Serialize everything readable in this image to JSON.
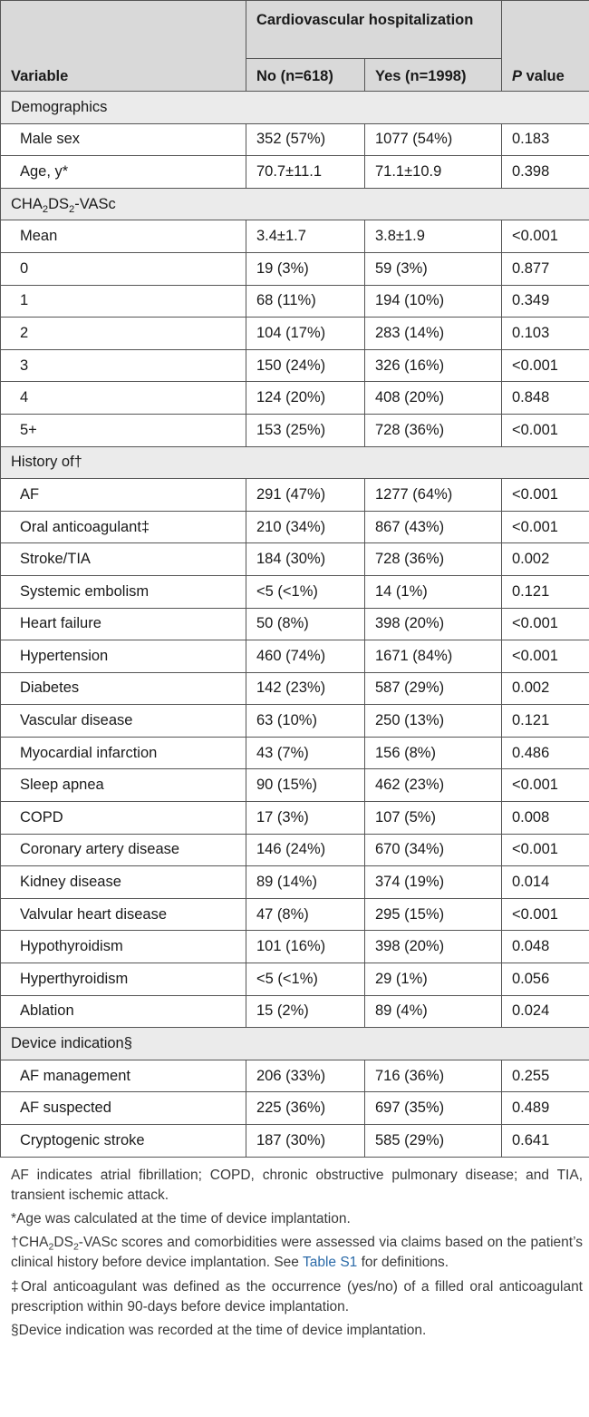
{
  "table": {
    "header": {
      "variable": "Variable",
      "group": "Cardiovascular hospitalization",
      "no": "No (n=618)",
      "yes": "Yes (n=1998)",
      "p_italic": "P",
      "p_rest": " value"
    },
    "sections": [
      {
        "title": "Demographics",
        "rows": [
          {
            "label": "Male sex",
            "no": "352 (57%)",
            "yes": "1077 (54%)",
            "p": "0.183"
          },
          {
            "label": "Age, y*",
            "no": "70.7±11.1",
            "yes": "71.1±10.9",
            "p": "0.398"
          }
        ]
      },
      {
        "title_parts": [
          "CHA",
          "2",
          "DS",
          "2",
          "-VASc"
        ],
        "rows": [
          {
            "label": "Mean",
            "no": "3.4±1.7",
            "yes": "3.8±1.9",
            "p": "<0.001"
          },
          {
            "label": "0",
            "no": "19 (3%)",
            "yes": "59 (3%)",
            "p": "0.877"
          },
          {
            "label": "1",
            "no": "68 (11%)",
            "yes": "194 (10%)",
            "p": "0.349"
          },
          {
            "label": "2",
            "no": "104 (17%)",
            "yes": "283 (14%)",
            "p": "0.103"
          },
          {
            "label": "3",
            "no": "150 (24%)",
            "yes": "326 (16%)",
            "p": "<0.001"
          },
          {
            "label": "4",
            "no": "124 (20%)",
            "yes": "408 (20%)",
            "p": "0.848"
          },
          {
            "label": "5+",
            "no": "153 (25%)",
            "yes": "728 (36%)",
            "p": "<0.001"
          }
        ]
      },
      {
        "title": "History of†",
        "rows": [
          {
            "label": "AF",
            "no": "291 (47%)",
            "yes": "1277 (64%)",
            "p": "<0.001"
          },
          {
            "label": "Oral anticoagulant‡",
            "no": "210 (34%)",
            "yes": "867 (43%)",
            "p": "<0.001"
          },
          {
            "label": "Stroke/TIA",
            "no": "184 (30%)",
            "yes": "728 (36%)",
            "p": "0.002"
          },
          {
            "label": "Systemic embolism",
            "no": "<5 (<1%)",
            "yes": "14 (1%)",
            "p": "0.121"
          },
          {
            "label": "Heart failure",
            "no": "50 (8%)",
            "yes": "398 (20%)",
            "p": "<0.001"
          },
          {
            "label": "Hypertension",
            "no": "460 (74%)",
            "yes": "1671 (84%)",
            "p": "<0.001"
          },
          {
            "label": "Diabetes",
            "no": "142 (23%)",
            "yes": "587 (29%)",
            "p": "0.002"
          },
          {
            "label": "Vascular disease",
            "no": "63 (10%)",
            "yes": "250 (13%)",
            "p": "0.121"
          },
          {
            "label": "Myocardial infarction",
            "no": "43 (7%)",
            "yes": "156 (8%)",
            "p": "0.486"
          },
          {
            "label": "Sleep apnea",
            "no": "90 (15%)",
            "yes": "462 (23%)",
            "p": "<0.001"
          },
          {
            "label": "COPD",
            "no": "17 (3%)",
            "yes": "107 (5%)",
            "p": "0.008"
          },
          {
            "label": "Coronary artery disease",
            "no": "146 (24%)",
            "yes": "670 (34%)",
            "p": "<0.001"
          },
          {
            "label": "Kidney disease",
            "no": "89 (14%)",
            "yes": "374 (19%)",
            "p": "0.014"
          },
          {
            "label": "Valvular heart disease",
            "no": "47 (8%)",
            "yes": "295 (15%)",
            "p": "<0.001"
          },
          {
            "label": "Hypothyroidism",
            "no": "101 (16%)",
            "yes": "398 (20%)",
            "p": "0.048"
          },
          {
            "label": "Hyperthyroidism",
            "no": "<5 (<1%)",
            "yes": "29 (1%)",
            "p": "0.056"
          },
          {
            "label": "Ablation",
            "no": "15 (2%)",
            "yes": "89 (4%)",
            "p": "0.024"
          }
        ]
      },
      {
        "title": "Device indication§",
        "rows": [
          {
            "label": "AF management",
            "no": "206 (33%)",
            "yes": "716 (36%)",
            "p": "0.255"
          },
          {
            "label": "AF suspected",
            "no": "225 (36%)",
            "yes": "697 (35%)",
            "p": "0.489"
          },
          {
            "label": "Cryptogenic stroke",
            "no": "187 (30%)",
            "yes": "585 (29%)",
            "p": "0.641"
          }
        ]
      }
    ]
  },
  "notes": {
    "abbreviations": "AF indicates atrial fibrillation; COPD, chronic obstructive pulmonary disease; and TIA, transient ischemic attack.",
    "age": "*Age was calculated at the time of device implantation.",
    "claims_parts": [
      "†CHA",
      "2",
      "DS",
      "2",
      "-VASc scores and comorbidities were assessed via claims based on the patient’s clinical history before device implantation. See "
    ],
    "claims_link": "Table S1",
    "claims_end": " for definitions.",
    "anticoagulant": "‡Oral anticoagulant was defined as the occurrence (yes/no) of a filled oral anticoagulant prescription within 90-days before device implantation.",
    "device": "§Device indication was recorded at the time of device implantation."
  }
}
